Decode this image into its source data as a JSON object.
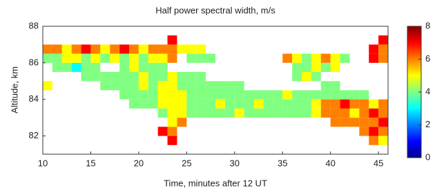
{
  "chart_data": {
    "type": "heatmap",
    "title": "Half power spectral width, m/s",
    "xlabel": "Time, minutes after 12 UT",
    "ylabel": "Altitude, km",
    "colormap": "jet",
    "xlim": [
      10,
      46
    ],
    "xticks": [
      10,
      15,
      20,
      25,
      30,
      35,
      40,
      45
    ],
    "ylim": [
      81,
      88
    ],
    "yticks": [
      82,
      84,
      86,
      88
    ],
    "clim": [
      0,
      8
    ],
    "cticks": [
      0,
      2,
      4,
      6,
      8
    ],
    "x": [
      10.5,
      11.5,
      12.5,
      13.5,
      14.5,
      15.5,
      16.5,
      17.5,
      18.5,
      19.5,
      20.5,
      21.5,
      22.5,
      23.5,
      24.5,
      25.5,
      26.5,
      27.5,
      28.5,
      29.5,
      30.5,
      31.5,
      32.5,
      33.5,
      34.5,
      35.5,
      36.5,
      37.5,
      38.5,
      39.5,
      40.5,
      41.5,
      42.5,
      43.5,
      44.5,
      45.5
    ],
    "y": [
      81.75,
      82.25,
      82.75,
      83.25,
      83.75,
      84.25,
      84.75,
      85.25,
      85.75,
      86.25,
      86.75,
      87.25
    ],
    "z": [
      [
        null,
        null,
        null,
        null,
        null,
        null,
        null,
        null,
        null,
        null,
        null,
        null,
        null,
        7,
        null,
        null,
        null,
        null,
        null,
        null,
        null,
        null,
        null,
        null,
        null,
        null,
        null,
        null,
        null,
        null,
        null,
        null,
        null,
        null,
        6,
        5
      ],
      [
        null,
        null,
        null,
        null,
        null,
        null,
        null,
        null,
        null,
        null,
        null,
        null,
        7,
        6,
        null,
        null,
        null,
        null,
        null,
        null,
        null,
        null,
        null,
        null,
        null,
        null,
        null,
        null,
        null,
        null,
        null,
        null,
        null,
        6,
        7,
        6
      ],
      [
        null,
        null,
        null,
        null,
        null,
        null,
        null,
        null,
        null,
        null,
        null,
        null,
        null,
        5,
        6,
        null,
        null,
        null,
        null,
        null,
        null,
        null,
        null,
        null,
        null,
        null,
        null,
        null,
        null,
        null,
        6,
        6,
        6,
        6,
        6,
        7
      ],
      [
        null,
        null,
        null,
        null,
        null,
        null,
        null,
        null,
        null,
        null,
        null,
        null,
        4,
        5,
        5,
        4,
        4,
        4,
        4,
        4,
        5,
        4,
        4,
        4,
        4,
        4,
        4,
        4,
        5,
        6,
        6,
        6,
        5,
        6,
        7,
        6
      ],
      [
        null,
        null,
        null,
        null,
        null,
        null,
        null,
        null,
        null,
        4,
        4,
        4,
        5,
        5,
        5,
        4,
        4,
        4,
        5,
        4,
        4,
        4,
        5,
        4,
        4,
        4,
        4,
        4,
        5,
        6,
        6,
        7,
        6,
        6,
        5,
        6
      ],
      [
        null,
        null,
        null,
        null,
        null,
        null,
        null,
        null,
        4,
        4,
        4,
        4,
        5,
        5,
        5,
        4,
        4,
        4,
        4,
        4,
        4,
        4,
        4,
        4,
        4,
        5,
        4,
        4,
        4,
        4,
        4,
        4,
        4,
        4,
        null,
        null
      ],
      [
        5,
        null,
        null,
        null,
        null,
        null,
        4,
        4,
        4,
        4,
        5,
        4,
        5,
        5,
        4,
        4,
        4,
        4,
        4,
        4,
        4,
        null,
        null,
        null,
        null,
        null,
        null,
        null,
        null,
        4,
        4,
        null,
        null,
        null,
        null,
        null
      ],
      [
        null,
        null,
        null,
        null,
        4,
        4,
        4,
        4,
        4,
        4,
        5,
        4,
        4,
        5,
        4,
        4,
        4,
        null,
        null,
        null,
        null,
        null,
        null,
        null,
        null,
        null,
        4,
        5,
        4,
        null,
        null,
        null,
        null,
        null,
        null,
        null
      ],
      [
        null,
        4,
        4,
        3,
        4,
        4,
        null,
        null,
        4,
        5,
        4,
        4,
        4,
        null,
        null,
        null,
        null,
        null,
        null,
        null,
        null,
        null,
        null,
        null,
        null,
        null,
        4,
        4,
        5,
        4,
        5,
        null,
        null,
        null,
        null,
        null
      ],
      [
        4,
        4,
        5,
        5,
        4,
        5,
        4,
        5,
        4,
        5,
        4,
        5,
        5,
        6,
        null,
        4,
        4,
        4,
        null,
        null,
        null,
        null,
        null,
        null,
        null,
        6,
        5,
        4,
        5,
        6,
        5,
        4,
        null,
        null,
        7,
        6
      ],
      [
        6,
        6,
        5,
        6,
        7,
        6,
        5,
        6,
        7,
        6,
        5,
        6,
        6,
        6,
        5,
        5,
        5,
        null,
        null,
        null,
        null,
        null,
        null,
        null,
        null,
        null,
        null,
        null,
        null,
        null,
        null,
        null,
        null,
        null,
        7,
        6
      ],
      [
        null,
        null,
        null,
        null,
        null,
        null,
        null,
        null,
        null,
        null,
        null,
        null,
        null,
        7,
        null,
        null,
        null,
        null,
        null,
        null,
        null,
        null,
        null,
        null,
        null,
        null,
        null,
        null,
        null,
        null,
        null,
        null,
        null,
        null,
        null,
        7
      ]
    ]
  }
}
